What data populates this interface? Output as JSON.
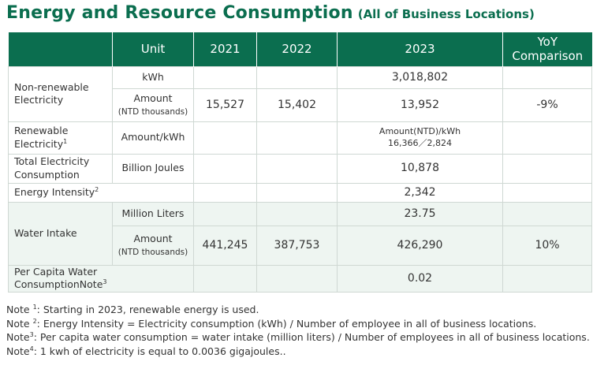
{
  "title": {
    "main": "Energy and Resource Consumption",
    "sub": "(All of Business Locations)"
  },
  "table": {
    "headers": [
      "",
      "Unit",
      "2021",
      "2022",
      "2023",
      "YoY Comparison"
    ],
    "nonrenewable": {
      "label_line1": "Non-renewable",
      "label_line2": "Electricity",
      "kwh": {
        "unit": "kWh",
        "v2021": "",
        "v2022": "",
        "v2023": "3,018,802",
        "yoy": ""
      },
      "amount": {
        "unit": "Amount",
        "unit_sub": "(NTD thousands)",
        "v2021": "15,527",
        "v2022": "15,402",
        "v2023": "13,952",
        "yoy": "-9%"
      }
    },
    "renewable": {
      "label_line1": "Renewable",
      "label_line2": "Electricity",
      "sup": "1",
      "unit": "Amount/kWh",
      "v2023_line1": "Amount(NTD)/kWh",
      "v2023_line2": "16,366／2,824"
    },
    "total": {
      "label_line1": "Total Electricity",
      "label_line2": "Consumption",
      "unit": "Billion Joules",
      "v2023": "10,878"
    },
    "intensity": {
      "label": "Energy Intensity",
      "sup": "2",
      "v2023": "2,342"
    },
    "water": {
      "label": "Water Intake",
      "liters": {
        "unit": "Million Liters",
        "v2023": "23.75"
      },
      "amount": {
        "unit": "Amount",
        "unit_sub": "(NTD thousands)",
        "v2021": "441,245",
        "v2022": "387,753",
        "v2023": "426,290",
        "yoy": "10%"
      }
    },
    "percapita": {
      "label": "Per Capita Water ConsumptionNote",
      "sup": "3",
      "v2023": "0.02"
    }
  },
  "notes": [
    {
      "prefix": "Note ",
      "sup": "1",
      "text": ": Starting in 2023, renewable energy is used."
    },
    {
      "prefix": "Note ",
      "sup": "2",
      "text": ": Energy Intensity = Electricity consumption (kWh) / Number of employee in all of business locations."
    },
    {
      "prefix": "Note",
      "sup": "3",
      "text": ": Per capita water consumption = water intake (million liters) / Number of employees  in all of business locations."
    },
    {
      "prefix": "Note",
      "sup": "4",
      "text": ": 1 kwh of electricity is equal to 0.0036 gigajoules.."
    }
  ],
  "colors": {
    "header_green": "#0b6e4f",
    "water_band": "#eef5f1"
  }
}
